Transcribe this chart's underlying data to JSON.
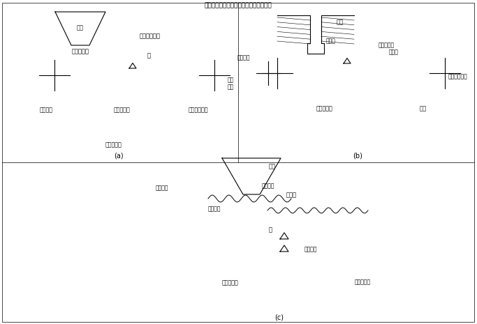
{
  "title": "连续式全自动包装机计重供给的自动控制",
  "bg_color": "#ffffff",
  "line_color": "#000000",
  "labels_a": {
    "hopper": "料斗",
    "feeder": "可控给料机",
    "conveyor": "物料载送裃置",
    "scale_label": "称",
    "weight_set": "重量给定",
    "sensor": "检重传感器",
    "sampler": "等分截取裃置",
    "controller": "电子调节器",
    "caption": "(a)"
  },
  "labels_b": {
    "silo": "料仓",
    "gate": "静闸门",
    "belt": "载物输送带",
    "scale_device": "称裃置",
    "adj_motor": "调节电机",
    "speed_motor": "测速\n电机",
    "controller": "电子调节器",
    "sampler": "等分截取裃置",
    "setpoint": "给定",
    "caption": "(b)"
  },
  "labels_c": {
    "hopper": "料斗",
    "screw": "给料螺旋",
    "weigher": "称量机",
    "adj_motor": "调节电机",
    "sync_motor": "同步电机",
    "scale_label": "称",
    "detector": "检测裃置",
    "setpoint": "计量给定値",
    "controller": "电子调节器",
    "caption": "(c)"
  }
}
